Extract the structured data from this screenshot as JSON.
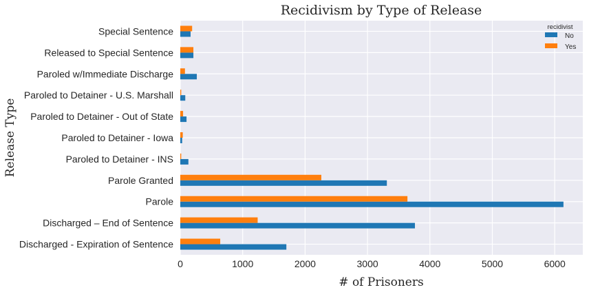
{
  "chart_data": {
    "type": "bar",
    "orientation": "horizontal",
    "title": "Recidivism by Type of Release",
    "xlabel": "# of Prisoners",
    "ylabel": "Release Type",
    "xlim": [
      0,
      6450
    ],
    "xticks": [
      0,
      1000,
      2000,
      3000,
      4000,
      5000,
      6000
    ],
    "grid": true,
    "legend": {
      "title": "recidivist",
      "placement": "top-right"
    },
    "categories": [
      "Discharged - Expiration of Sentence",
      "Discharged – End of Sentence",
      "Parole",
      "Parole Granted",
      "Paroled to Detainer - INS",
      "Paroled to Detainer - Iowa",
      "Paroled to Detainer - Out of State",
      "Paroled to Detainer - U.S. Marshall",
      "Paroled w/Immediate Discharge",
      "Released to Special Sentence",
      "Special Sentence"
    ],
    "series": [
      {
        "name": "No",
        "color": "#1f77b4",
        "values": [
          1700,
          3760,
          6140,
          3310,
          130,
          30,
          100,
          80,
          265,
          210,
          165
        ]
      },
      {
        "name": "Yes",
        "color": "#ff7f0e",
        "values": [
          640,
          1240,
          3640,
          2260,
          15,
          40,
          45,
          15,
          75,
          210,
          190
        ]
      }
    ]
  }
}
